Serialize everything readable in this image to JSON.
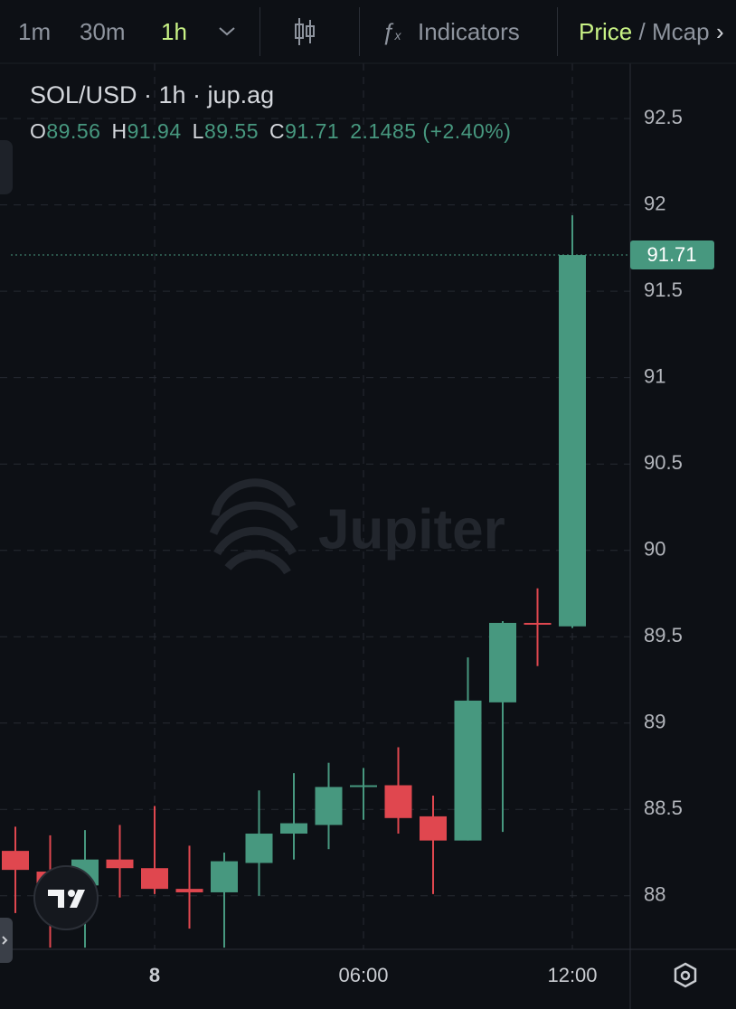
{
  "toolbar": {
    "intervals": [
      "1m",
      "30m",
      "1h"
    ],
    "indicators": "Indicators",
    "price": "Price",
    "separator": "/",
    "mcap": "Mcap"
  },
  "chart_data": {
    "type": "candlestick",
    "title": "SOL/USD · 1h · jup.ag",
    "ohlc_labels": [
      "O",
      "H",
      "L",
      "C"
    ],
    "change_text": "2.1485 (+2.40%)",
    "watermark": "Jupiter",
    "categories": [
      null,
      null,
      null,
      null,
      "8",
      null,
      null,
      null,
      null,
      null,
      "06:00",
      null,
      null,
      null,
      null,
      null,
      "12:00"
    ],
    "open": [
      88.26,
      88.14,
      88.06,
      88.21,
      88.16,
      88.04,
      88.02,
      88.19,
      88.36,
      88.41,
      88.63,
      88.64,
      88.46,
      88.32,
      89.12,
      89.58,
      89.56
    ],
    "high": [
      88.4,
      88.35,
      88.38,
      88.41,
      88.52,
      88.29,
      88.25,
      88.61,
      88.71,
      88.77,
      88.74,
      88.86,
      88.58,
      89.38,
      89.59,
      89.78,
      91.94
    ],
    "low": [
      87.9,
      87.7,
      87.7,
      87.99,
      88.01,
      87.81,
      87.7,
      88.0,
      88.21,
      88.27,
      88.44,
      88.36,
      88.01,
      88.32,
      88.37,
      89.33,
      89.55
    ],
    "close": [
      88.15,
      88.07,
      88.21,
      88.16,
      88.04,
      88.02,
      88.2,
      88.36,
      88.42,
      88.63,
      88.64,
      88.45,
      88.32,
      89.13,
      89.58,
      89.57,
      91.71
    ],
    "up_color": "#47987f",
    "down_color": "#e0474f",
    "ylim": [
      87.69,
      92.82
    ],
    "yticks": [
      88,
      88.5,
      89,
      89.5,
      90,
      90.5,
      91,
      91.5,
      92,
      92.5
    ],
    "grid": true
  }
}
